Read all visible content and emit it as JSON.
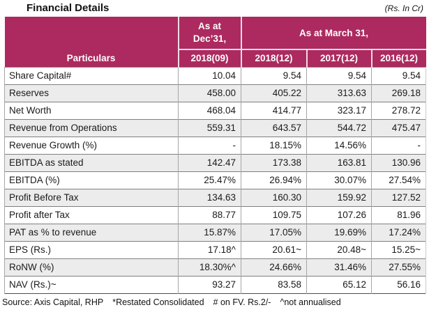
{
  "page": {
    "title": "Financial Details",
    "unit_note": "(Rs. In Cr)"
  },
  "table": {
    "header": {
      "particulars_label": "Particulars",
      "dec_group_line1": "As at",
      "dec_group_line2": "Dec’31,",
      "march_group": "As at March 31,",
      "year_cols": [
        "2018(09)",
        "2018(12)",
        "2017(12)",
        "2016(12)"
      ]
    },
    "rows": [
      {
        "label": "Share Capital#",
        "values": [
          "10.04",
          "9.54",
          "9.54",
          "9.54"
        ]
      },
      {
        "label": "Reserves",
        "values": [
          "458.00",
          "405.22",
          "313.63",
          "269.18"
        ]
      },
      {
        "label": "Net Worth",
        "values": [
          "468.04",
          "414.77",
          "323.17",
          "278.72"
        ]
      },
      {
        "label": "Revenue from Operations",
        "values": [
          "559.31",
          "643.57",
          "544.72",
          "475.47"
        ]
      },
      {
        "label": "Revenue Growth (%)",
        "values": [
          "-",
          "18.15%",
          "14.56%",
          "-"
        ]
      },
      {
        "label": "EBITDA as stated",
        "values": [
          "142.47",
          "173.38",
          "163.81",
          "130.96"
        ]
      },
      {
        "label": "EBITDA (%)",
        "values": [
          "25.47%",
          "26.94%",
          "30.07%",
          "27.54%"
        ]
      },
      {
        "label": "Profit Before Tax",
        "values": [
          "134.63",
          "160.30",
          "159.92",
          "127.52"
        ]
      },
      {
        "label": "Profit after Tax",
        "values": [
          "88.77",
          "109.75",
          "107.26",
          "81.96"
        ]
      },
      {
        "label": "PAT as % to revenue",
        "values": [
          "15.87%",
          "17.05%",
          "19.69%",
          "17.24%"
        ]
      },
      {
        "label": "EPS (Rs.)",
        "values": [
          "17.18^",
          "20.61~",
          "20.48~",
          "15.25~"
        ]
      },
      {
        "label": "RoNW (%)",
        "values": [
          "18.30%^",
          "24.66%",
          "31.46%",
          "27.55%"
        ]
      },
      {
        "label": "NAV (Rs.)~",
        "values": [
          "93.27",
          "83.58",
          "65.12",
          "56.16"
        ]
      }
    ]
  },
  "footer": {
    "segments": [
      "Source: Axis Capital, RHP",
      "*Restated Consolidated",
      "# on FV. Rs.2/-",
      "^not annualised"
    ]
  },
  "colors": {
    "header_bg": "#AC2A5F",
    "header_text": "#FFFFFF",
    "header_divider": "#EEDCE5",
    "row_alt_bg": "#EDECEC",
    "grid_line_horizontal": "#7F7F7F",
    "grid_line_vertical": "#A6A6A6",
    "title_text": "#111111"
  }
}
